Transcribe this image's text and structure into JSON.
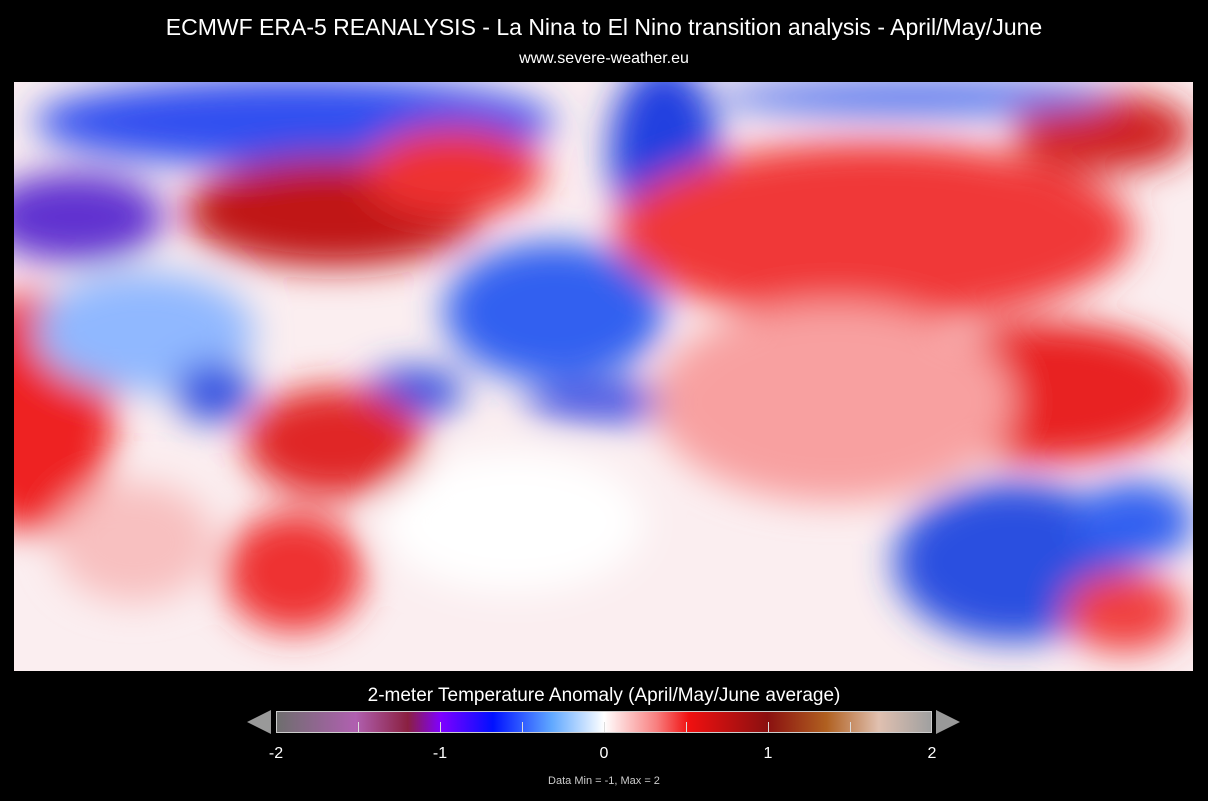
{
  "title": "ECMWF ERA-5 REANALYSIS -  La Nina to El Nino transition analysis - April/May/June",
  "subtitle": "www.severe-weather.eu",
  "colorbar": {
    "title": "2-meter Temperature Anomaly (April/May/June average)",
    "min": -2,
    "max": 2,
    "ticks": [
      "-2",
      "-1",
      "0",
      "1",
      "2"
    ],
    "colors": {
      "neg2": "#6e6e6e",
      "neg1": "#8000ff",
      "neg05": "#0010ff",
      "zero": "#ffffff",
      "pos05": "#f01010",
      "pos1": "#8a1010",
      "pos2": "#a0a0a0"
    }
  },
  "footer": "Data Min = -1, Max = 2"
}
